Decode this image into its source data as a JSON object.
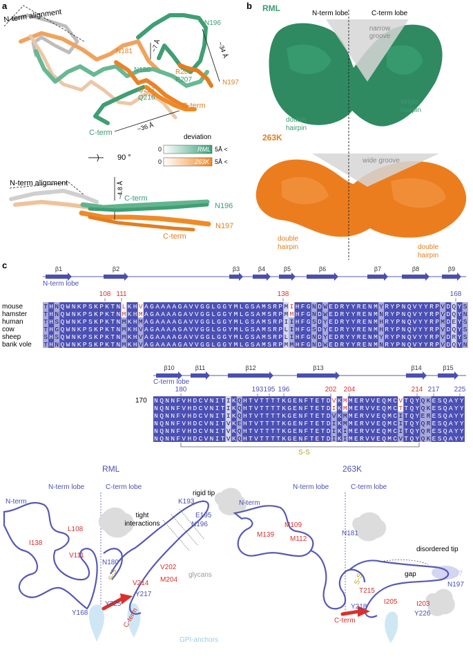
{
  "panel_a": {
    "letter": "a",
    "top_view": {
      "alignment_label": "N-term alignment",
      "residues": [
        "N196",
        "N181",
        "N180",
        "R208",
        "R207",
        "N197",
        "Q217",
        "Q216",
        "C-term",
        "C-term"
      ],
      "distances": [
        "~7 Å",
        "~34 Å",
        "~36 Å"
      ]
    },
    "rotation_label": "90 °",
    "legend": {
      "title": "deviation",
      "rows": [
        {
          "min": "0",
          "name": "RML",
          "max": "5Å <",
          "color": "#3aa27a"
        },
        {
          "min": "0",
          "name": "263K",
          "max": "5Å <",
          "color": "#f08a24"
        }
      ]
    },
    "side_view": {
      "alignment_label": "N-term alignment",
      "distance": "~4.8 Å",
      "labels": [
        "C-term",
        "N196",
        "N197",
        "C-term"
      ]
    }
  },
  "panel_b": {
    "letter": "b",
    "strains": [
      "RML",
      "263K"
    ],
    "lobes": [
      "N-term lobe",
      "C-term lobe"
    ],
    "grooves": [
      "narrow groove",
      "wide groove"
    ],
    "rml_hairpins": [
      "double hairpin",
      "single hairpin"
    ],
    "k263_hairpins": [
      "double hairpin",
      "double hairpin"
    ]
  },
  "panel_c": {
    "letter": "c",
    "row1": {
      "strands": [
        "β1",
        "β2",
        "β3",
        "β4",
        "β5",
        "β6",
        "β7",
        "β8",
        "β9"
      ],
      "lobe": "N-term lobe",
      "numbers": [
        {
          "label": "108",
          "color": "#d9302c"
        },
        {
          "label": "111",
          "color": "#d9302c"
        },
        {
          "label": "138",
          "color": "#d9302c"
        },
        {
          "label": "168",
          "color": "#4a4fb0"
        }
      ],
      "species": [
        "mouse",
        "hamster",
        "human",
        "cow",
        "sheep",
        "bank vole"
      ],
      "sequences": [
        "THNQWNKPSKPKTNLKHVAGAAAAGAVVGGLGGYMLGSAMSRPMIHFGNDWEDRYYRENMYRYPNQVYYRPVDQYS",
        "THNQWNKPSKPKTNMKHMAGAAAAGAVVGGLGGYMLGSAMSRPMMHFGNDWEDRYYRENMNRYPNQVYYRPVDQYN",
        "THSQWNKPSKPKTNMKHMAGAAAAGAVVGGLGGYMLGSAMSRPIIHFGSDYEDRYYRENMHRYPNQVYYRPMDEYS",
        "THGQWNKPSKPKTNMKHVAGAAAAGAVVGGLGGYMLGSAMSRPLIHFGSDYEDRYYRENMHRYPNQVYYRPVDQYS",
        "SHSQWNKPSKPKTNMKHVAGAAAAGAVVGGLGGYMLGSAMSRPLIHFGNDYEDRYYRENMYRYPNQVYYRPVDRYS",
        "THNQWNKPSKPKTNMKHVAGAAAAGAVVGGLGGYMLGSAMSRPMMHFGNDWEDRYYRENMNRYPNQVYYRPVDQYN"
      ]
    },
    "row2": {
      "strands": [
        "β10",
        "β11",
        "β12",
        "β13",
        "β14",
        "β15"
      ],
      "lobe": "C-term lobe",
      "start": "170",
      "numbers": [
        {
          "label": "180",
          "color": "#4a4fb0"
        },
        {
          "label": "193",
          "color": "#4a4fb0"
        },
        {
          "label": "195",
          "color": "#4a4fb0"
        },
        {
          "label": "196",
          "color": "#4a4fb0"
        },
        {
          "label": "202",
          "color": "#d9302c"
        },
        {
          "label": "204",
          "color": "#d9302c"
        },
        {
          "label": "214",
          "color": "#d9302c"
        },
        {
          "label": "217",
          "color": "#4a4fb0"
        },
        {
          "label": "225",
          "color": "#4a4fb0"
        }
      ],
      "sequences": [
        "NQNNFVHDCVNITIKQHTVTTTTKGENFTETDVKMMERVVEQMCVTQYQKESQAYY",
        "NQNNFVHDCVNITIKQHTVTTTTKGENFTETDIKMMERVVEQMCTTQYQKESQAYY",
        "NQNNFVHDCVNITIKQHTVTTTTKGENFTETDVKMMERVVEQMCITQYERESQAYY",
        "NQNNFVHDCVNITVKEHTVTTTTKGENFTETDIKMMERVVEQMCITQYQRESQAYY",
        "NQNNFVHDCVNITVKQHTVTTTTKGENFTETDIKIMERVVEQMCITQYQRESQAYY",
        "NQNNFVHDCVNITVKQHTVTTTTKGENFTETDIKIMERVVEQMCVTQYQKESQAYY"
      ],
      "disulfide": "S-S"
    }
  },
  "panel_d": {
    "rml": {
      "title": "RML",
      "lobes": [
        "N-term lobe",
        "C-term lobe"
      ],
      "red_labels": [
        "L108",
        "I138",
        "V111",
        "V202",
        "M204",
        "V214"
      ],
      "blue_labels": [
        "N-term",
        "K193",
        "E195",
        "N196",
        "N180",
        "Y217",
        "Y168",
        "Y225"
      ],
      "notes": [
        "rigid tip",
        "tight interactions"
      ],
      "cterm": "C-term",
      "glycans": "glycans",
      "gpi": "GPI-anchors",
      "ss": "S-S"
    },
    "k263": {
      "title": "263K",
      "lobes": [
        "N-term lobe",
        "C-term lobe"
      ],
      "red_labels": [
        "M109",
        "M139",
        "M112",
        "T215",
        "I205",
        "I203"
      ],
      "blue_labels": [
        "N-term",
        "N181",
        "N197",
        "Y218",
        "Y226"
      ],
      "notes": [
        "disordered tip",
        "gap",
        "?"
      ],
      "cterm": "C-term",
      "ss": "S-S"
    }
  }
}
